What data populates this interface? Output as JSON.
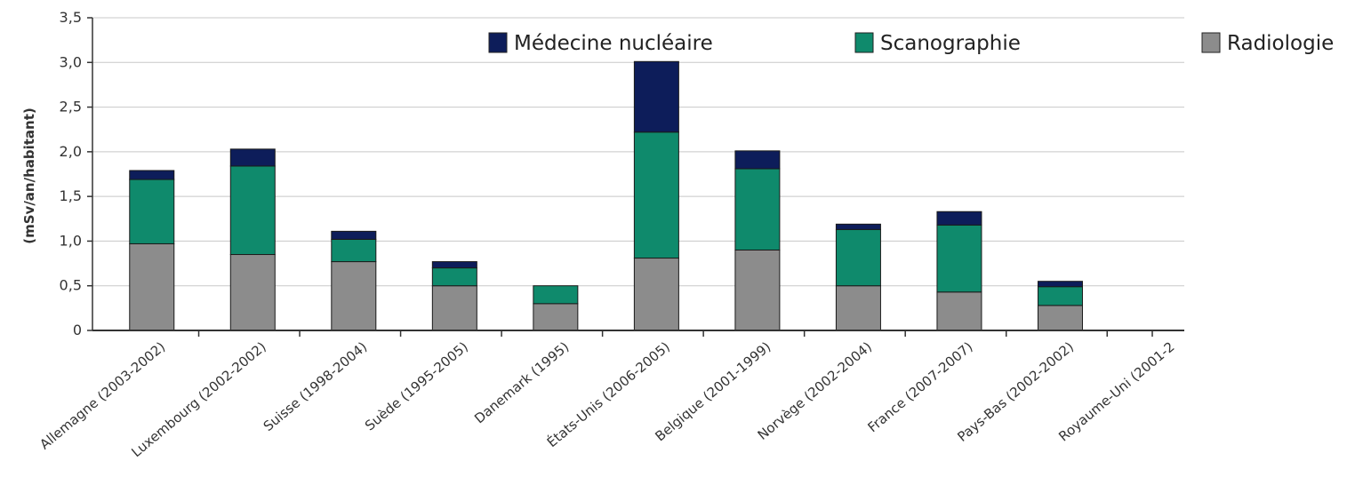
{
  "chart_data": {
    "type": "bar",
    "stacked": true,
    "title": "",
    "xlabel": "",
    "ylabel": "(mSv/an/habitant)",
    "ylim": [
      0,
      3.5
    ],
    "yticks": [
      "0",
      "0,5",
      "1,0",
      "1,5",
      "2,0",
      "2,5",
      "3,0",
      "3,5"
    ],
    "grid": true,
    "categories": [
      "Allemagne (2003-2002)",
      "Luxembourg (2002-2002)",
      "Suisse (1998-2004)",
      "Suède (1995-2005)",
      "Danemark (1995)",
      "États-Unis (2006-2005)",
      "Belgique (2001-1999)",
      "Norvège (2002-2004)",
      "France (2007-2007)",
      "Pays-Bas (2002-2002)",
      "Royaume-Uni (2001-2"
    ],
    "series": [
      {
        "name": "Radiologie",
        "color": "#8c8c8c",
        "values": [
          0.97,
          0.85,
          0.77,
          0.5,
          0.3,
          0.81,
          0.9,
          0.5,
          0.43,
          0.28,
          0
        ]
      },
      {
        "name": "Scanographie",
        "color": "#0f8a6c",
        "values": [
          0.72,
          0.99,
          0.25,
          0.2,
          0.2,
          1.41,
          0.91,
          0.63,
          0.75,
          0.21,
          0
        ]
      },
      {
        "name": "Médecine nucléaire",
        "color": "#0d1d5a",
        "values": [
          0.1,
          0.19,
          0.09,
          0.07,
          0,
          0.79,
          0.2,
          0.06,
          0.15,
          0.06,
          0
        ]
      }
    ],
    "legend": {
      "position": "top",
      "order": [
        "Médecine nucléaire",
        "Scanographie",
        "Radiologie"
      ]
    }
  }
}
